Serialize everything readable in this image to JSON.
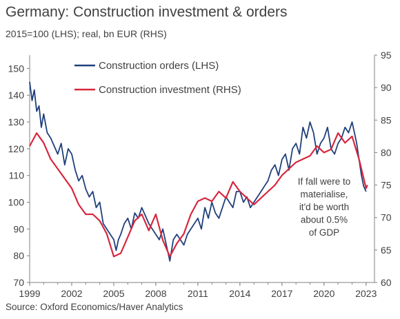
{
  "title": "Germany: Construction investment & orders",
  "subtitle": "2015=100 (LHS); real, bn EUR (RHS)",
  "source": "Source: Oxford Economics/Haver Analytics",
  "colors": {
    "orders": "#1F3F7A",
    "investment": "#D7263D",
    "axis": "#808080",
    "text": "#404040"
  },
  "chart_data": {
    "type": "line",
    "grid": false,
    "legend_position": "top-left (inside plot)",
    "x_ticks": [
      "1999",
      "2002",
      "2005",
      "2008",
      "2011",
      "2014",
      "2017",
      "2020",
      "2023"
    ],
    "xlim": [
      1999,
      2023.6
    ],
    "y_left": {
      "lim": [
        70,
        155
      ],
      "ticks": [
        70,
        80,
        90,
        100,
        110,
        120,
        130,
        140,
        150
      ]
    },
    "y_right": {
      "lim": [
        60,
        95
      ],
      "ticks": [
        60,
        65,
        70,
        75,
        80,
        85,
        90,
        95
      ]
    },
    "annotation": [
      "If fall were to",
      "materialise,",
      "it'd be worth",
      "about 0.5%",
      "of GDP"
    ],
    "series": [
      {
        "name": "Construction orders (LHS)",
        "axis": "left",
        "color": "#1F3F7A",
        "x": [
          1999.0,
          1999.17,
          1999.33,
          1999.5,
          1999.67,
          1999.83,
          2000.0,
          2000.25,
          2000.5,
          2000.75,
          2001.0,
          2001.25,
          2001.5,
          2001.75,
          2002.0,
          2002.25,
          2002.5,
          2002.75,
          2003.0,
          2003.25,
          2003.5,
          2003.75,
          2004.0,
          2004.25,
          2004.5,
          2004.75,
          2005.0,
          2005.17,
          2005.33,
          2005.5,
          2005.75,
          2006.0,
          2006.25,
          2006.5,
          2006.75,
          2007.0,
          2007.25,
          2007.5,
          2007.75,
          2008.0,
          2008.25,
          2008.5,
          2008.75,
          2009.0,
          2009.25,
          2009.5,
          2009.75,
          2010.0,
          2010.25,
          2010.5,
          2010.75,
          2011.0,
          2011.25,
          2011.5,
          2011.75,
          2012.0,
          2012.25,
          2012.5,
          2012.75,
          2013.0,
          2013.25,
          2013.5,
          2013.75,
          2014.0,
          2014.25,
          2014.5,
          2014.75,
          2015.0,
          2015.25,
          2015.5,
          2015.75,
          2016.0,
          2016.25,
          2016.5,
          2016.75,
          2017.0,
          2017.25,
          2017.5,
          2017.75,
          2018.0,
          2018.25,
          2018.5,
          2018.75,
          2019.0,
          2019.25,
          2019.5,
          2019.75,
          2020.0,
          2020.25,
          2020.5,
          2020.75,
          2021.0,
          2021.25,
          2021.5,
          2021.75,
          2022.0,
          2022.17,
          2022.33,
          2022.5,
          2022.67,
          2022.83,
          2023.0
        ],
        "values": [
          145,
          138,
          142,
          134,
          136,
          128,
          133,
          126,
          124,
          121,
          118,
          122,
          114,
          120,
          118,
          112,
          108,
          110,
          105,
          102,
          104,
          98,
          100,
          92,
          90,
          88,
          86,
          82,
          86,
          88,
          92,
          94,
          90,
          96,
          94,
          98,
          95,
          92,
          90,
          88,
          86,
          90,
          84,
          78,
          86,
          88,
          86,
          84,
          88,
          90,
          92,
          94,
          90,
          98,
          94,
          100,
          96,
          94,
          98,
          102,
          100,
          98,
          104,
          104,
          100,
          102,
          98,
          100,
          102,
          104,
          106,
          108,
          112,
          114,
          110,
          116,
          118,
          112,
          120,
          122,
          118,
          128,
          124,
          130,
          126,
          118,
          122,
          124,
          128,
          120,
          118,
          122,
          124,
          128,
          126,
          130,
          126,
          122,
          116,
          110,
          106,
          104
        ]
      },
      {
        "name": "Construction investment (RHS)",
        "axis": "right",
        "color": "#D7263D",
        "x": [
          1999.0,
          1999.5,
          2000.0,
          2000.5,
          2001.0,
          2001.5,
          2002.0,
          2002.5,
          2003.0,
          2003.5,
          2004.0,
          2004.5,
          2005.0,
          2005.5,
          2006.0,
          2006.5,
          2007.0,
          2007.5,
          2008.0,
          2008.5,
          2009.0,
          2009.5,
          2010.0,
          2010.5,
          2011.0,
          2011.5,
          2012.0,
          2012.5,
          2013.0,
          2013.5,
          2014.0,
          2014.5,
          2015.0,
          2015.5,
          2016.0,
          2016.5,
          2017.0,
          2017.5,
          2018.0,
          2018.5,
          2019.0,
          2019.5,
          2020.0,
          2020.5,
          2021.0,
          2021.5,
          2022.0,
          2022.5,
          2023.0,
          2023.1
        ],
        "values": [
          81.0,
          83.0,
          81.5,
          79.0,
          77.5,
          76.0,
          74.5,
          72.0,
          70.5,
          70.5,
          69.5,
          67.5,
          64.0,
          64.5,
          67.0,
          69.5,
          70.5,
          68.0,
          70.5,
          66.5,
          64.0,
          66.0,
          67.5,
          70.5,
          72.5,
          73.0,
          72.5,
          74.0,
          73.0,
          75.5,
          74.0,
          73.0,
          72.0,
          73.0,
          74.0,
          75.0,
          76.5,
          77.5,
          78.5,
          79.0,
          79.5,
          81.0,
          80.0,
          80.5,
          83.0,
          81.5,
          82.5,
          79.0,
          74.5,
          75.0
        ]
      }
    ]
  }
}
